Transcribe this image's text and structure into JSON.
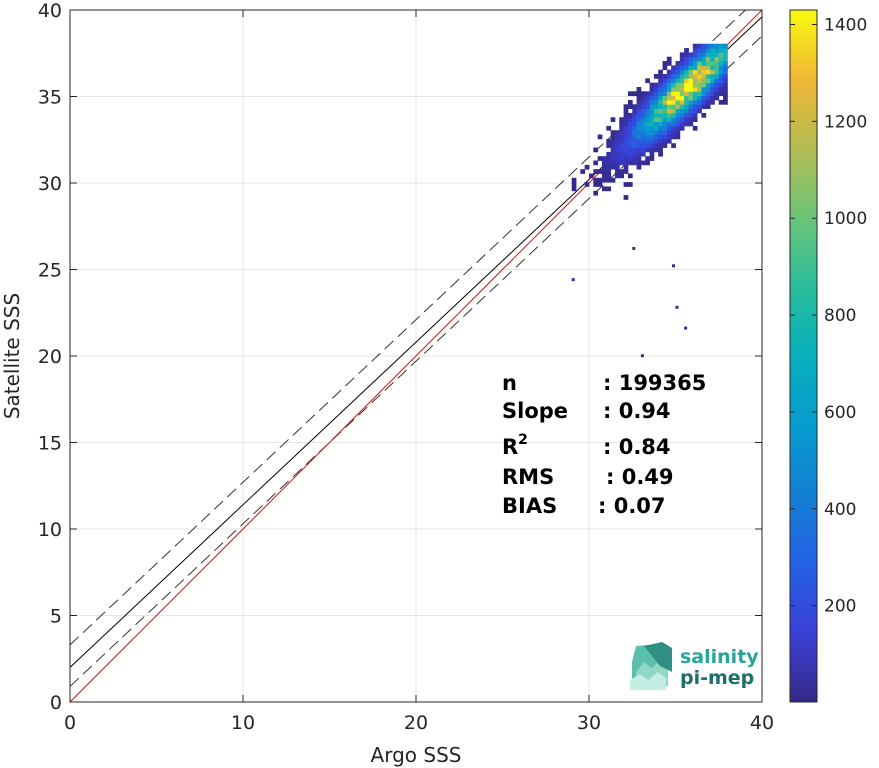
{
  "chart_data": {
    "type": "heatmap",
    "xlabel": "Argo SSS",
    "ylabel": "Satellite SSS",
    "xlim": [
      0,
      40
    ],
    "ylim": [
      0,
      40
    ],
    "xticks": [
      0,
      10,
      20,
      30,
      40
    ],
    "yticks": [
      0,
      5,
      10,
      15,
      20,
      25,
      30,
      35,
      40
    ],
    "grid": true,
    "colorbar": {
      "clim": [
        1,
        1430
      ],
      "ticks": [
        200,
        400,
        600,
        800,
        1000,
        1200,
        1400
      ],
      "colormap": "parula"
    },
    "reference_lines": {
      "identity": {
        "slope": 1,
        "intercept": 0,
        "color": "#ff0000"
      },
      "fit": {
        "slope": 0.94,
        "intercept": 2.0,
        "color": "#000000"
      },
      "fit_upper": {
        "slope": 0.94,
        "intercept": 3.3,
        "style": "dashed"
      },
      "fit_lower": {
        "slope": 0.94,
        "intercept": 0.9,
        "style": "dashed"
      }
    },
    "density_core": {
      "x_range": [
        28.0,
        37.8
      ],
      "y_range": [
        28.8,
        38.0
      ],
      "peak_at": [
        35.5,
        35.5
      ],
      "peak_count": 1430
    },
    "outliers": [
      [
        29.0,
        24.5
      ],
      [
        35.5,
        21.7
      ],
      [
        33.0,
        20.1
      ],
      [
        34.8,
        25.3
      ],
      [
        35.0,
        22.9
      ],
      [
        32.5,
        26.3
      ]
    ],
    "stats": [
      {
        "label": "n",
        "value": ": 199365"
      },
      {
        "label": "Slope",
        "value": ": 0.94"
      },
      {
        "label": "R",
        "sup": "2",
        "value": ": 0.84"
      },
      {
        "label": "RMS",
        "value": ": 0.49"
      },
      {
        "label": "BIAS",
        "value": ": 0.07"
      }
    ]
  },
  "logo": {
    "line1": "salinity",
    "line2": "pi-mep"
  },
  "colors": {
    "identity": "#ff0000",
    "fit": "#000000",
    "grid": "#e6e6e6",
    "logo_teal": "#26a69a",
    "logo_dark": "#1e6f6a"
  }
}
